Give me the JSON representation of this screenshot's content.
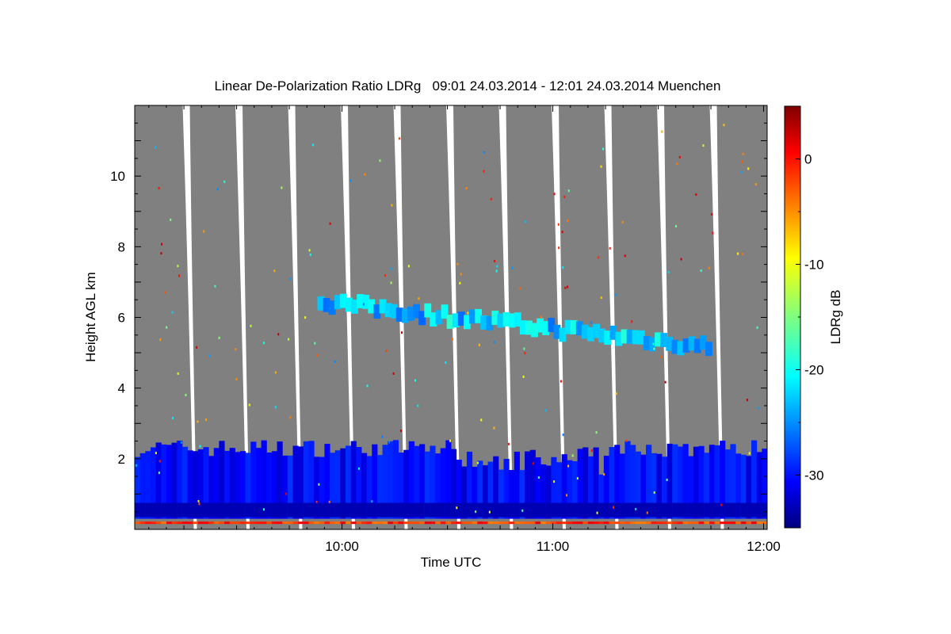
{
  "chart_data": {
    "type": "heatmap",
    "title": "Linear De-Polarization Ratio LDRg   09:01 24.03.2014 - 12:01 24.03.2014 Muenchen",
    "xlabel": "Time UTC",
    "ylabel": "Height AGL km",
    "colorbar_label": "LDRg dB",
    "xlim": [
      "09:01",
      "12:01"
    ],
    "ylim": [
      0,
      12
    ],
    "x_ticks": [
      "10:00",
      "11:00",
      "12:00"
    ],
    "y_ticks": [
      2,
      4,
      6,
      8,
      10
    ],
    "colorbar_range": [
      -35,
      5
    ],
    "colorbar_ticks": [
      0,
      -10,
      -20,
      -30
    ],
    "colormap": "jet",
    "background_color": "#808080",
    "scan_gaps_utc": [
      "09:16",
      "09:31",
      "09:46",
      "10:01",
      "10:16",
      "10:31",
      "10:46",
      "11:01",
      "11:16",
      "11:31",
      "11:46"
    ],
    "features": [
      {
        "name": "boundary layer",
        "height_km": [
          0.3,
          2.3
        ],
        "ldr_db": -30
      },
      {
        "name": "elevated layer",
        "height_km": [
          5.0,
          6.8
        ],
        "time_utc": [
          "09:53",
          "11:45"
        ],
        "ldr_db": -22
      }
    ]
  }
}
